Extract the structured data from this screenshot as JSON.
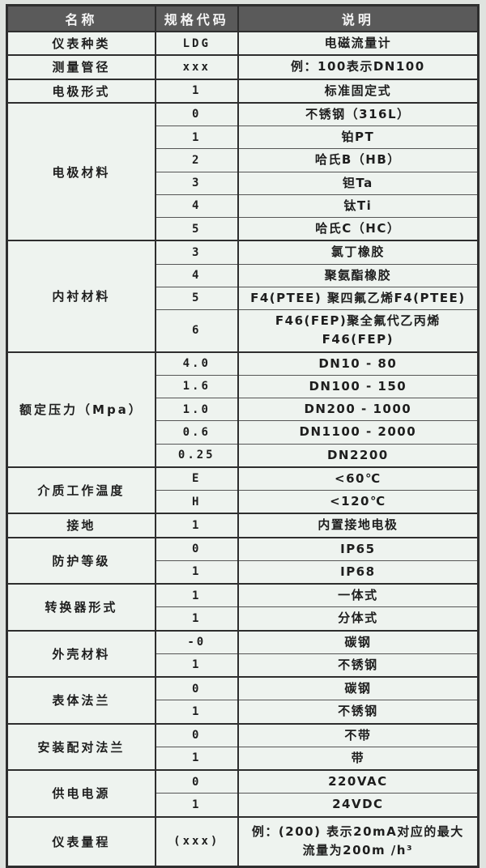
{
  "colors": {
    "page_bg": "#dfe3df",
    "cell_bg": "#eef3ef",
    "header_bg": "#5a5a5a",
    "header_fg": "#f5f5f5",
    "border_strong": "#2e2e2e",
    "border_soft": "#555555"
  },
  "table": {
    "headers": [
      "名称",
      "规格代码",
      "说明"
    ],
    "sections": [
      {
        "name": "仪表种类",
        "rows": [
          {
            "code": "LDG",
            "desc": "电磁流量计"
          }
        ]
      },
      {
        "name": "测量管径",
        "rows": [
          {
            "code": "xxx",
            "desc": "例：100表示DN100"
          }
        ]
      },
      {
        "name": "电极形式",
        "rows": [
          {
            "code": "1",
            "desc": "标准固定式"
          }
        ]
      },
      {
        "name": "电极材料",
        "rows": [
          {
            "code": "0",
            "desc": "不锈钢（316L）"
          },
          {
            "code": "1",
            "desc": "铂PT"
          },
          {
            "code": "2",
            "desc": "哈氏B（HB）"
          },
          {
            "code": "3",
            "desc": "钽Ta"
          },
          {
            "code": "4",
            "desc": "钛Ti"
          },
          {
            "code": "5",
            "desc": "哈氏C（HC）"
          }
        ]
      },
      {
        "name": "内衬材料",
        "rows": [
          {
            "code": "3",
            "desc": "氯丁橡胶"
          },
          {
            "code": "4",
            "desc": "聚氨酯橡胶"
          },
          {
            "code": "5",
            "desc": "F4(PTEE) 聚四氟乙烯F4(PTEE)"
          },
          {
            "code": "6",
            "desc": "F46(FEP)聚全氟代乙丙烯F46(FEP)"
          }
        ]
      },
      {
        "name": "额定压力（Mpa）",
        "rows": [
          {
            "code": "4.0",
            "desc": "DN10 - 80"
          },
          {
            "code": "1.6",
            "desc": "DN100 - 150"
          },
          {
            "code": "1.0",
            "desc": "DN200 - 1000"
          },
          {
            "code": "0.6",
            "desc": "DN1100 - 2000"
          },
          {
            "code": "0.25",
            "desc": "DN2200"
          }
        ]
      },
      {
        "name": "介质工作温度",
        "rows": [
          {
            "code": "E",
            "desc": "<60℃"
          },
          {
            "code": "H",
            "desc": "<120℃"
          }
        ]
      },
      {
        "name": "接地",
        "rows": [
          {
            "code": "1",
            "desc": "内置接地电极"
          }
        ]
      },
      {
        "name": "防护等级",
        "rows": [
          {
            "code": "0",
            "desc": "IP65"
          },
          {
            "code": "1",
            "desc": "IP68"
          }
        ]
      },
      {
        "name": "转换器形式",
        "rows": [
          {
            "code": "1",
            "desc": "一体式"
          },
          {
            "code": "1",
            "desc": "分体式"
          }
        ]
      },
      {
        "name": "外壳材料",
        "rows": [
          {
            "code": "-0",
            "desc": "碳钢"
          },
          {
            "code": "1",
            "desc": "不锈钢"
          }
        ]
      },
      {
        "name": "表体法兰",
        "rows": [
          {
            "code": "0",
            "desc": "碳钢"
          },
          {
            "code": "1",
            "desc": "不锈钢"
          }
        ]
      },
      {
        "name": "安装配对法兰",
        "rows": [
          {
            "code": "0",
            "desc": "不带"
          },
          {
            "code": "1",
            "desc": "带"
          }
        ]
      },
      {
        "name": "供电电源",
        "rows": [
          {
            "code": "0",
            "desc": "220VAC"
          },
          {
            "code": "1",
            "desc": "24VDC"
          }
        ]
      },
      {
        "name": "仪表量程",
        "rows": [
          {
            "code": "(xxx)",
            "desc": "例：(200) 表示20mA对应的最大\n流量为200m /h³",
            "tall": true
          }
        ]
      }
    ]
  }
}
